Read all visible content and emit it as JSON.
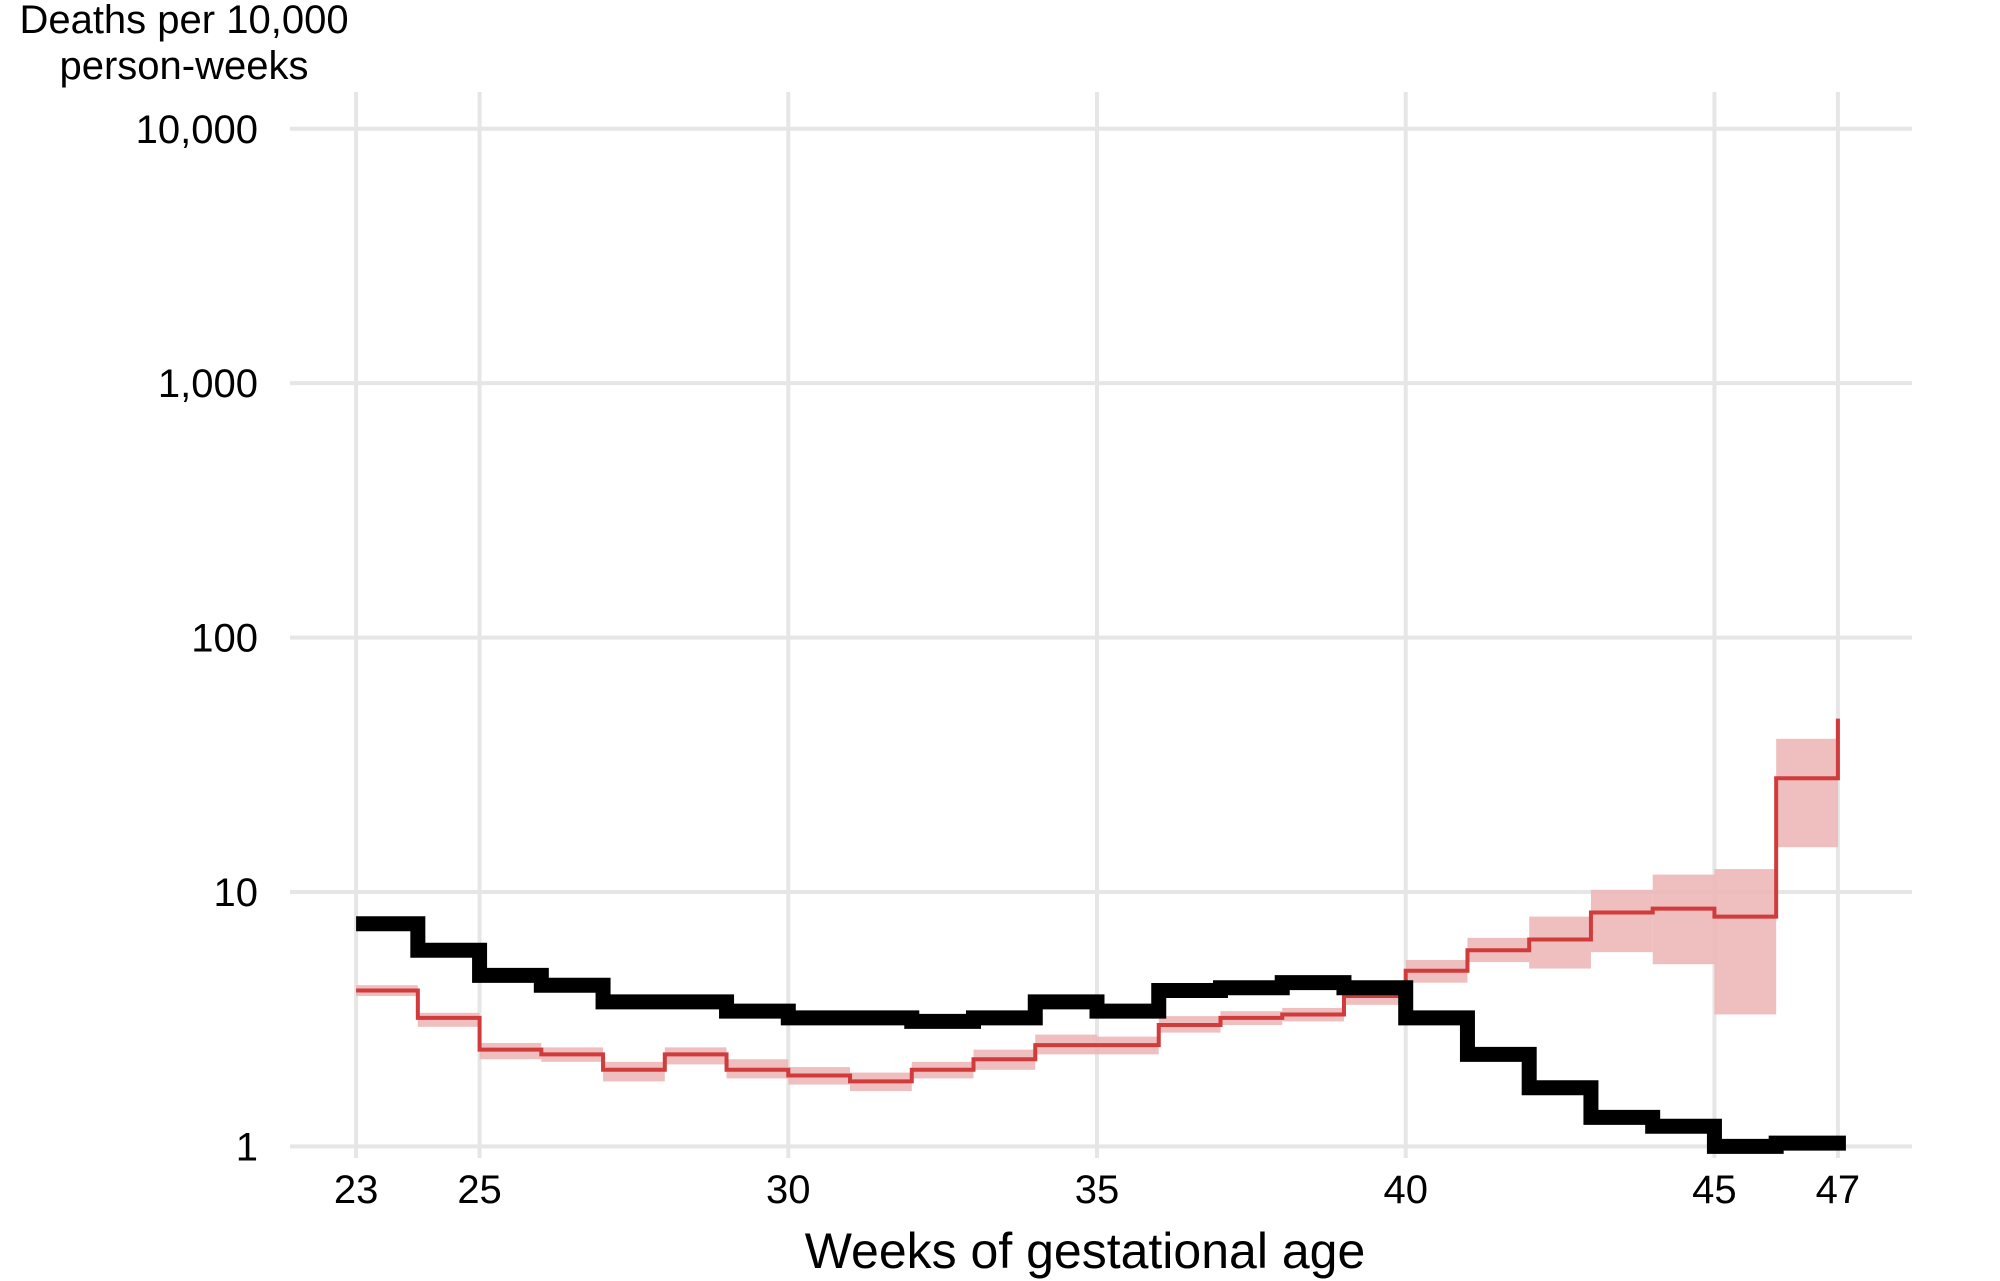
{
  "chart_data": {
    "type": "line",
    "title": "",
    "xlabel": "Weeks of gestational age",
    "ylabel": [
      "Deaths per 10,000",
      "person-weeks"
    ],
    "x_ticks": [
      23,
      25,
      30,
      35,
      40,
      45,
      47
    ],
    "x_tick_labels": [
      "23",
      "25",
      "30",
      "35",
      "40",
      "45",
      "47"
    ],
    "y_ticks": [
      1,
      10,
      100,
      1000,
      10000
    ],
    "y_tick_labels": [
      "1",
      "10",
      "100",
      "1,000",
      "10,000"
    ],
    "y_scale": "log10",
    "xlim": [
      21.8,
      48.2
    ],
    "ylim": [
      0.9,
      15000
    ],
    "grid": true,
    "legend": "none",
    "x": [
      23,
      24,
      25,
      26,
      27,
      28,
      29,
      30,
      31,
      32,
      33,
      34,
      35,
      36,
      37,
      38,
      39,
      40,
      41,
      42,
      43,
      44,
      45,
      46,
      47
    ],
    "series": [
      {
        "style": "step-thick",
        "color": "#000000",
        "values": [
          7.5,
          5.9,
          4.7,
          4.3,
          3.7,
          3.7,
          3.4,
          3.2,
          3.2,
          3.1,
          3.2,
          3.7,
          3.4,
          4.1,
          4.2,
          4.4,
          4.2,
          3.2,
          2.3,
          1.7,
          1.3,
          1.2,
          1.0,
          1.03,
          1.03
        ]
      },
      {
        "style": "step-thin",
        "color": "#d03b3b",
        "band_color": "#ecb3b3",
        "values": [
          4.1,
          3.2,
          2.4,
          2.3,
          2.0,
          2.3,
          2.0,
          1.9,
          1.8,
          2.0,
          2.2,
          2.5,
          2.5,
          3.0,
          3.2,
          3.3,
          3.9,
          4.9,
          5.9,
          6.5,
          8.3,
          8.6,
          8.0,
          28.0,
          48.0
        ],
        "lower": [
          3.9,
          2.95,
          2.2,
          2.15,
          1.8,
          2.1,
          1.85,
          1.75,
          1.65,
          1.85,
          2.0,
          2.3,
          2.3,
          2.8,
          3.0,
          3.1,
          3.6,
          4.4,
          5.3,
          5.0,
          5.8,
          5.2,
          3.3,
          15.0,
          15.0
        ],
        "upper": [
          4.3,
          3.35,
          2.55,
          2.45,
          2.15,
          2.45,
          2.2,
          2.05,
          1.95,
          2.15,
          2.4,
          2.75,
          2.7,
          3.25,
          3.4,
          3.5,
          4.1,
          5.4,
          6.6,
          8.0,
          10.2,
          11.7,
          12.3,
          40.0,
          40.0
        ]
      }
    ]
  }
}
